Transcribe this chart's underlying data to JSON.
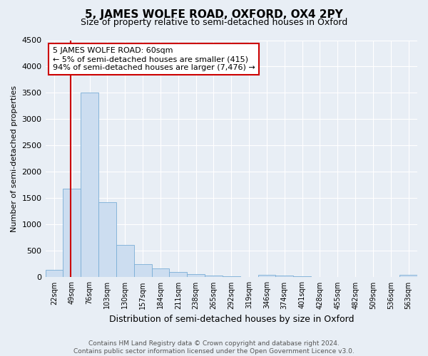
{
  "title": "5, JAMES WOLFE ROAD, OXFORD, OX4 2PY",
  "subtitle": "Size of property relative to semi-detached houses in Oxford",
  "xlabel": "Distribution of semi-detached houses by size in Oxford",
  "ylabel": "Number of semi-detached properties",
  "bin_labels": [
    "22sqm",
    "49sqm",
    "76sqm",
    "103sqm",
    "130sqm",
    "157sqm",
    "184sqm",
    "211sqm",
    "238sqm",
    "265sqm",
    "292sqm",
    "319sqm",
    "346sqm",
    "374sqm",
    "401sqm",
    "428sqm",
    "455sqm",
    "482sqm",
    "509sqm",
    "536sqm",
    "563sqm"
  ],
  "bar_values": [
    140,
    1680,
    3500,
    1420,
    620,
    255,
    170,
    100,
    55,
    30,
    15,
    10,
    50,
    30,
    15,
    10,
    5,
    5,
    5,
    5,
    50
  ],
  "bar_color": "#ccddf0",
  "bar_edge_color": "#7aaed6",
  "vline_color": "#cc0000",
  "vline_position": 1.41,
  "ylim": [
    0,
    4500
  ],
  "yticks": [
    0,
    500,
    1000,
    1500,
    2000,
    2500,
    3000,
    3500,
    4000,
    4500
  ],
  "annotation_title": "5 JAMES WOLFE ROAD: 60sqm",
  "annotation_line1": "← 5% of semi-detached houses are smaller (415)",
  "annotation_line2": "94% of semi-detached houses are larger (7,476) →",
  "annotation_box_color": "#ffffff",
  "annotation_box_edge": "#cc0000",
  "footer_line1": "Contains HM Land Registry data © Crown copyright and database right 2024.",
  "footer_line2": "Contains public sector information licensed under the Open Government Licence v3.0.",
  "bg_color": "#e8eef5",
  "plot_bg_color": "#e8eef5",
  "grid_color": "#ffffff"
}
